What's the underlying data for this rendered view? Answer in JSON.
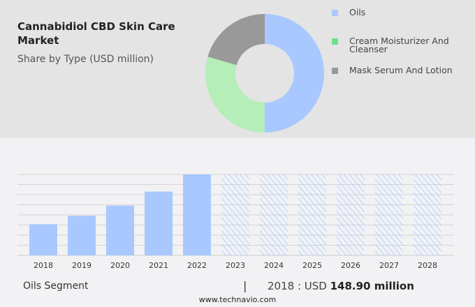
{
  "title": "Cannabidiol CBD Skin Care Market",
  "subtitle": "Share by Type (USD million)",
  "chart_data": [
    {
      "type": "pie",
      "variant": "donut",
      "series": [
        {
          "name": "Oils",
          "value": 50,
          "color": "#a8c8ff"
        },
        {
          "name": "Cream Moisturizer And Cleanser",
          "value": 29.5,
          "color": "#b5eeb8"
        },
        {
          "name": "Mask Serum And Lotion",
          "value": 20.5,
          "color": "#999999"
        }
      ],
      "legend_colors": [
        "#a8c8ff",
        "#6ee08a",
        "#999999"
      ],
      "legend": "right"
    },
    {
      "type": "bar",
      "categories": [
        "2018",
        "2019",
        "2020",
        "2021",
        "2022",
        "2023",
        "2024",
        "2025",
        "2026",
        "2027",
        "2028"
      ],
      "values": [
        148.9,
        189,
        238,
        305,
        387,
        null,
        null,
        null,
        null,
        null,
        null
      ],
      "forecast_categories": [
        "2023",
        "2024",
        "2025",
        "2026",
        "2027",
        "2028"
      ],
      "forecast_style": "hatched",
      "ylim": [
        0,
        387
      ],
      "grid": true,
      "color": "#a8c8ff"
    }
  ],
  "footer": {
    "segment": "Oils Segment",
    "separator": "|",
    "value_prefix": "2018 : USD",
    "value": "148.90 million",
    "website": "www.technavio.com"
  }
}
